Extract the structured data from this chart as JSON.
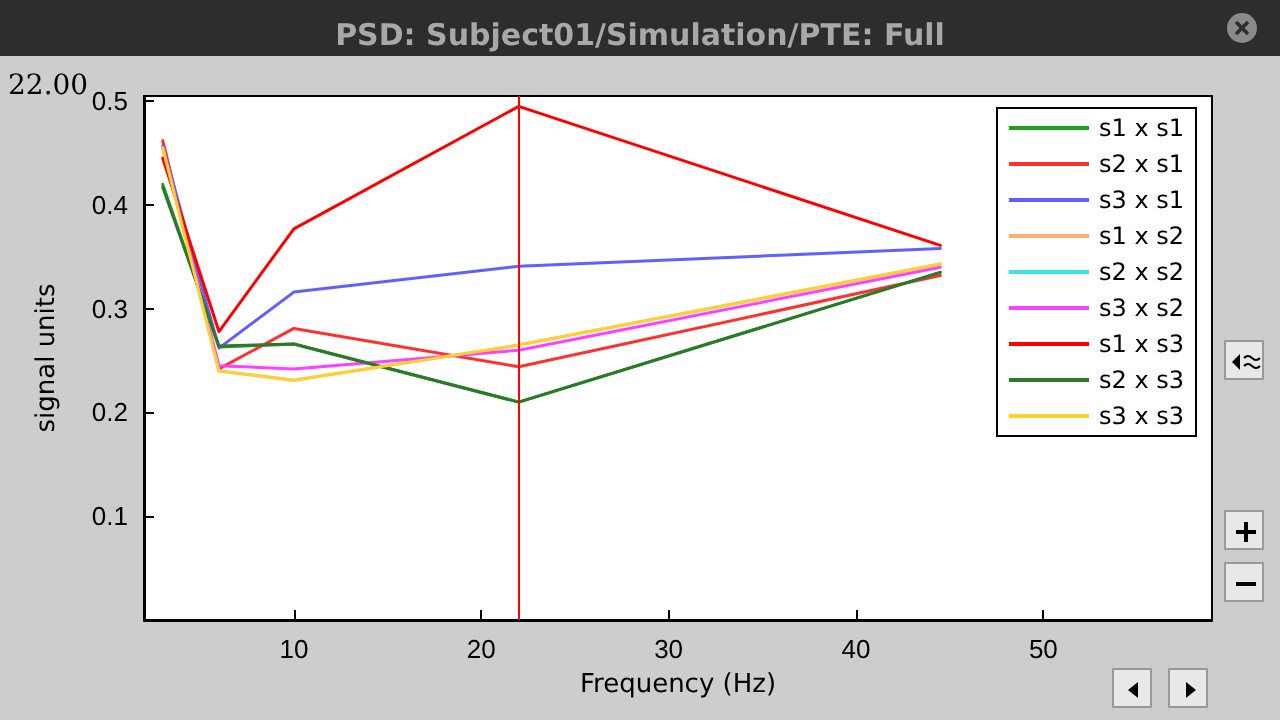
{
  "chart_data": {
    "type": "line",
    "title": "PSD: Subject01/Simulation/PTE: Full",
    "xlabel": "Frequency (Hz)",
    "ylabel": "signal units",
    "x": [
      3,
      6,
      10,
      22,
      44.5
    ],
    "series": [
      {
        "name": "s1 x s1",
        "color": "#20a020",
        "values": [
          0.42,
          0.263,
          0.266,
          0.21,
          0.335
        ]
      },
      {
        "name": "s2 x s1",
        "color": "#ff3030",
        "values": [
          0.462,
          0.242,
          0.281,
          0.244,
          0.332
        ]
      },
      {
        "name": "s3 x s1",
        "color": "#6060ff",
        "values": [
          0.457,
          0.262,
          0.316,
          0.341,
          0.358
        ]
      },
      {
        "name": "s1 x s2",
        "color": "#ffb070",
        "values": [
          0.455,
          0.24,
          0.231,
          0.265,
          0.343
        ]
      },
      {
        "name": "s2 x s2",
        "color": "#40e0e0",
        "values": [
          null,
          null,
          null,
          null,
          null
        ]
      },
      {
        "name": "s3 x s2",
        "color": "#ff40ff",
        "values": [
          0.455,
          0.245,
          0.242,
          0.26,
          0.34
        ]
      },
      {
        "name": "s1 x s3",
        "color": "#ff0000",
        "values": [
          0.445,
          0.278,
          0.377,
          0.495,
          0.361
        ]
      },
      {
        "name": "s2 x s3",
        "color": "#2a7a2a",
        "values": [
          0.417,
          0.264,
          0.266,
          0.21,
          0.335
        ]
      },
      {
        "name": "s3 x s3",
        "color": "#ffd030",
        "values": [
          0.455,
          0.24,
          0.231,
          0.265,
          0.343
        ]
      }
    ],
    "xlim": [
      2,
      59
    ],
    "xticks": [
      10,
      20,
      30,
      40,
      50
    ],
    "ylim": [
      0,
      0.505
    ],
    "yticks": [
      0.1,
      0.2,
      0.3,
      0.4,
      0.5
    ],
    "ref_lines": [
      {
        "axis": "x",
        "value": 22,
        "color": "#ff0000"
      }
    ],
    "annotations": [
      "22.00"
    ],
    "legend": "top right",
    "grid": false,
    "marker": "none",
    "line_style": "solid"
  }
}
